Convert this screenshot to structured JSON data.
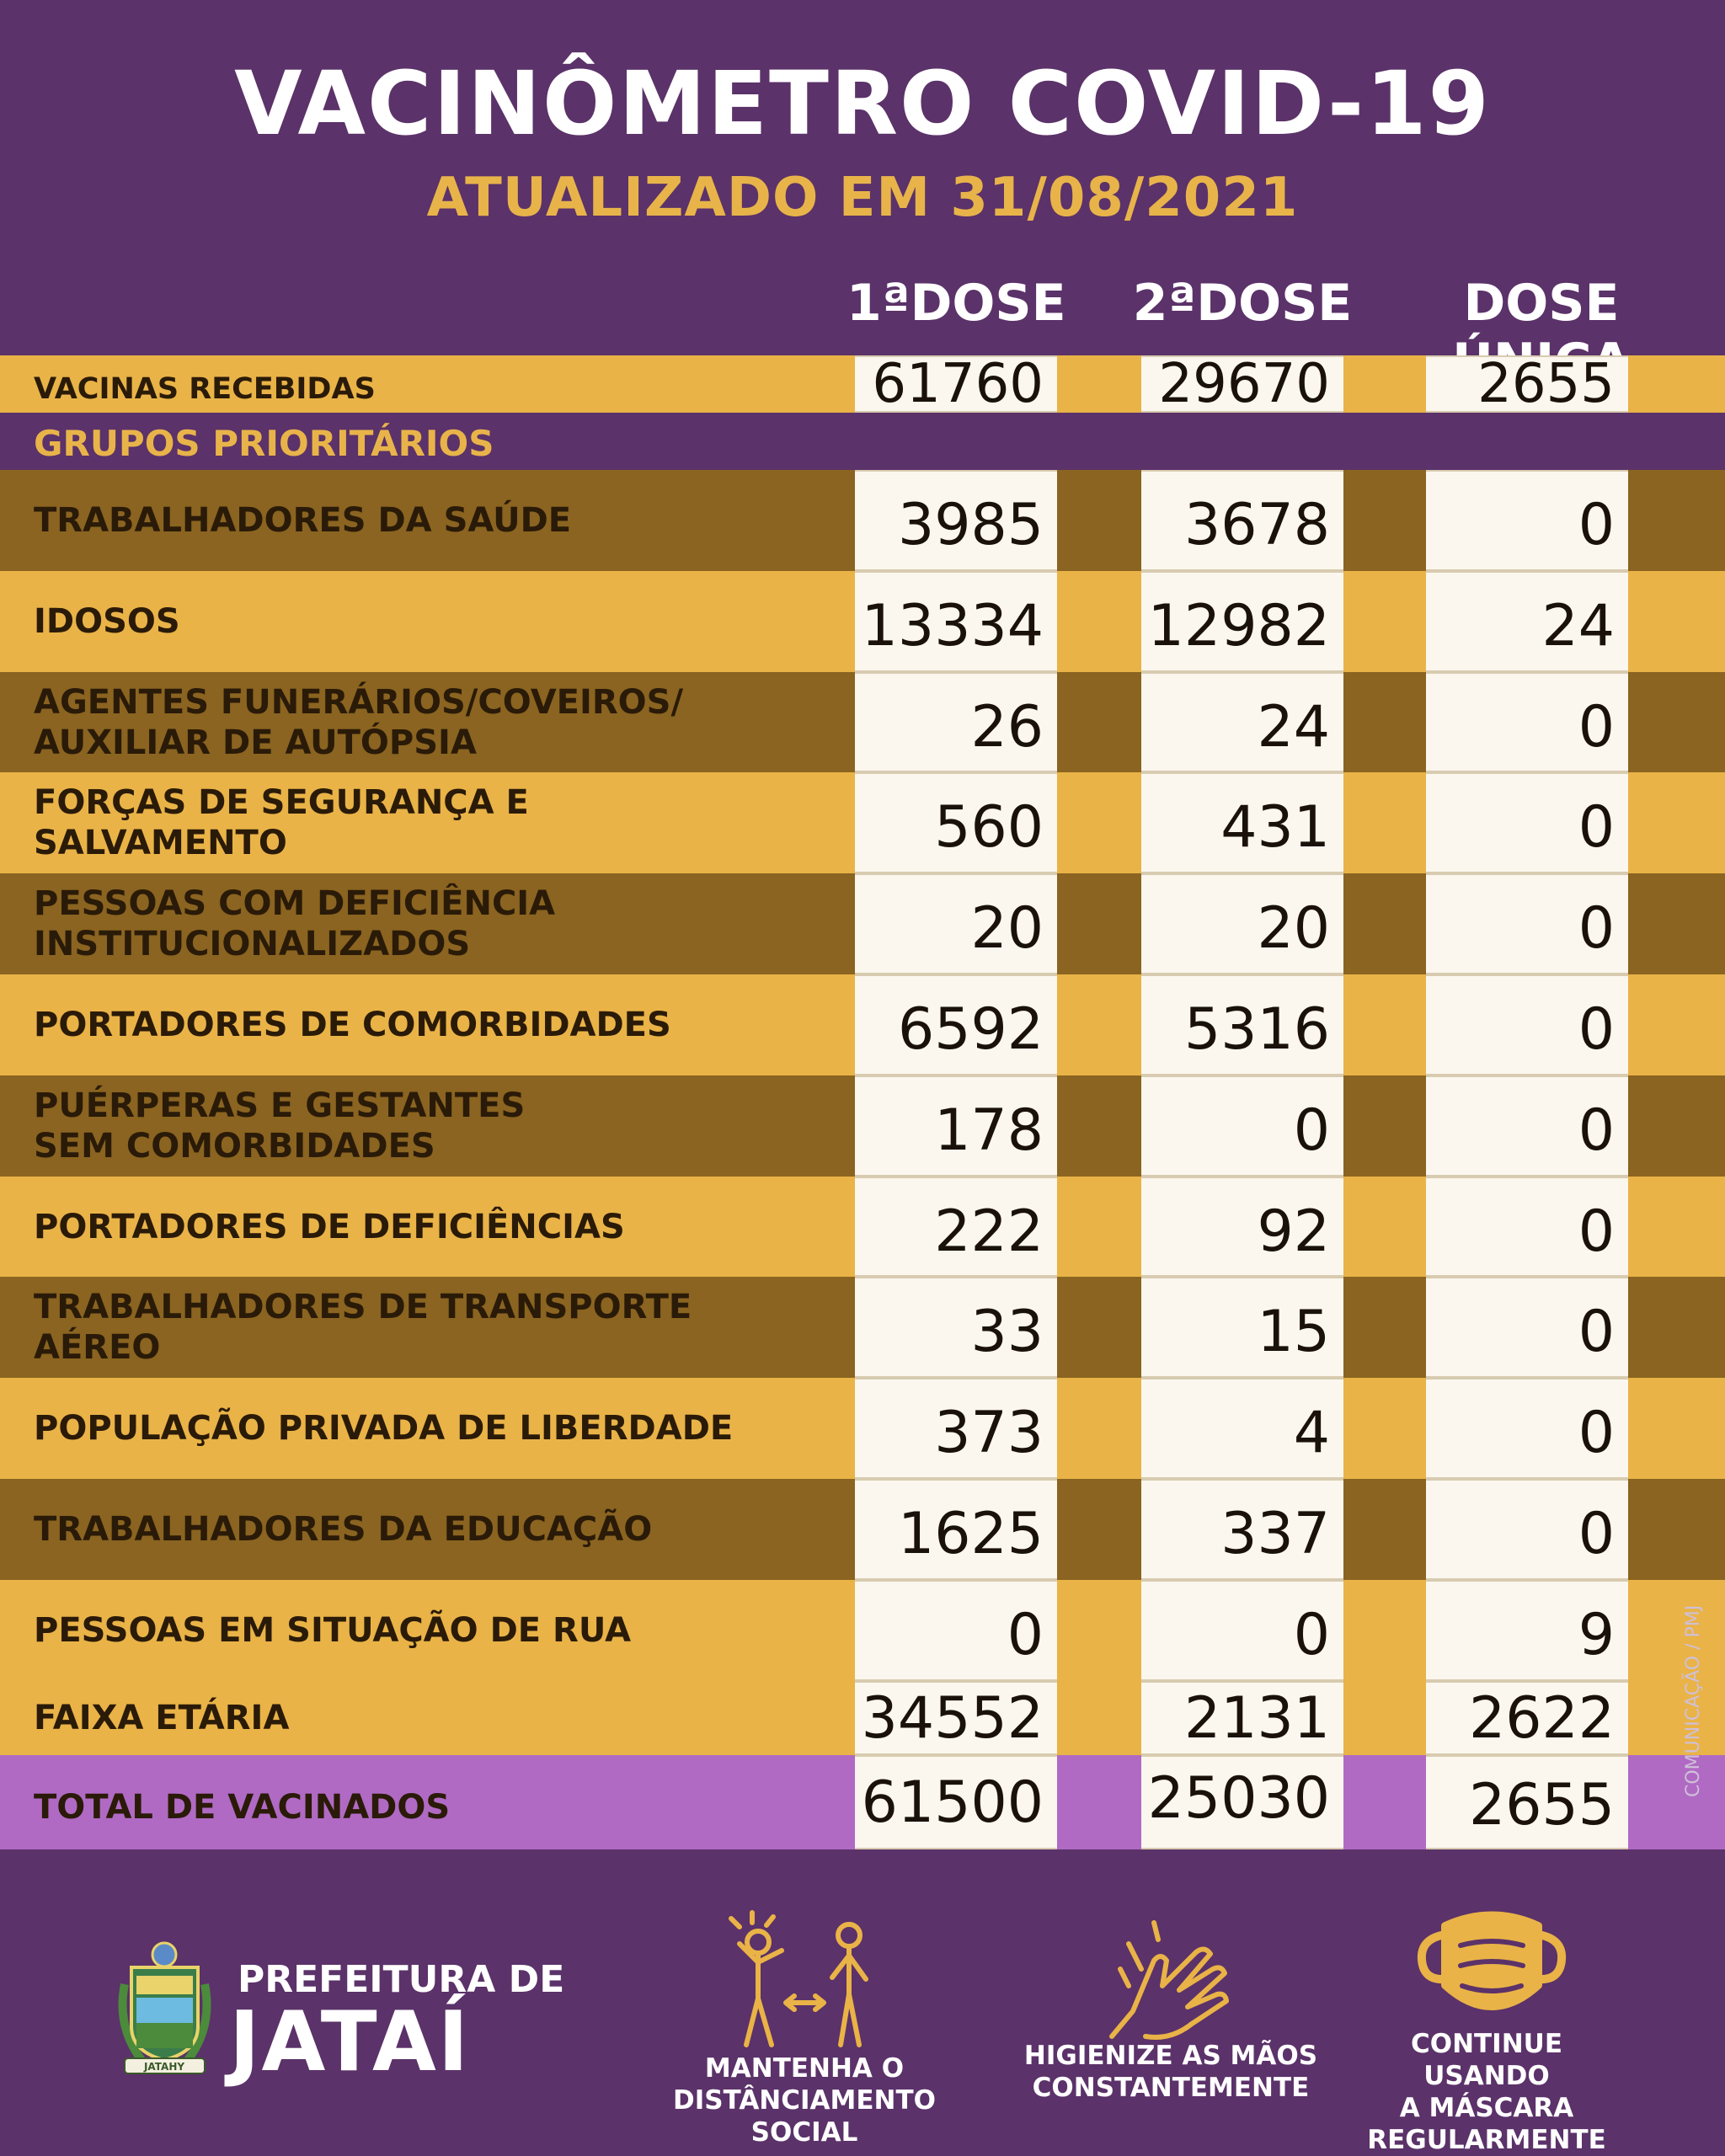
{
  "header": {
    "title": "VACINÔMETRO COVID-19",
    "subtitle": "ATUALIZADO EM 31/08/2021",
    "columns": [
      "1ªDOSE",
      "2ªDOSE",
      "DOSE ÚNICA"
    ]
  },
  "received": {
    "label": "VACINAS RECEBIDAS",
    "values": [
      "61760",
      "29670",
      "2655"
    ]
  },
  "section_label": "GRUPOS PRIORITÁRIOS",
  "rows": [
    {
      "label_lines": [
        "TRABALHADORES DA SAÚDE"
      ],
      "values": [
        "3985",
        "3678",
        "0"
      ]
    },
    {
      "label_lines": [
        "IDOSOS"
      ],
      "values": [
        "13334",
        "12982",
        "24"
      ]
    },
    {
      "label_lines": [
        "AGENTES FUNERÁRIOS/COVEIROS/",
        "AUXILIAR DE AUTÓPSIA"
      ],
      "values": [
        "26",
        "24",
        "0"
      ]
    },
    {
      "label_lines": [
        "FORÇAS DE SEGURANÇA E",
        "SALVAMENTO"
      ],
      "values": [
        "560",
        "431",
        "0"
      ]
    },
    {
      "label_lines": [
        "PESSOAS COM DEFICIÊNCIA",
        "INSTITUCIONALIZADOS"
      ],
      "values": [
        "20",
        "20",
        "0"
      ]
    },
    {
      "label_lines": [
        "PORTADORES DE COMORBIDADES"
      ],
      "values": [
        "6592",
        "5316",
        "0"
      ]
    },
    {
      "label_lines": [
        "PUÉRPERAS E GESTANTES",
        "SEM COMORBIDADES"
      ],
      "values": [
        "178",
        "0",
        "0"
      ]
    },
    {
      "label_lines": [
        "PORTADORES DE DEFICIÊNCIAS"
      ],
      "values": [
        "222",
        "92",
        "0"
      ]
    },
    {
      "label_lines": [
        "TRABALHADORES DE TRANSPORTE",
        "AÉREO"
      ],
      "values": [
        "33",
        "15",
        "0"
      ]
    },
    {
      "label_lines": [
        "POPULAÇÃO PRIVADA DE LIBERDADE"
      ],
      "values": [
        "373",
        "4",
        "0"
      ]
    },
    {
      "label_lines": [
        "TRABALHADORES DA EDUCAÇÃO"
      ],
      "values": [
        "1625",
        "337",
        "0"
      ]
    },
    {
      "label_lines": [
        "PESSOAS EM SITUAÇÃO DE RUA"
      ],
      "values": [
        "0",
        "0",
        "9"
      ]
    }
  ],
  "age_range": {
    "label": "FAIXA ETÁRIA",
    "values": [
      "34552",
      "2131",
      "2622"
    ]
  },
  "total": {
    "label": "TOTAL DE VACINADOS",
    "values": [
      "61500",
      "25030",
      "2655"
    ]
  },
  "credit": "COMUNICAÇÃO / PMJ",
  "footer": {
    "logo_line1": "PREFEITURA DE",
    "logo_line2": "JATAÍ",
    "seal_text": "JATAHY",
    "tips": [
      {
        "icon": "social-distance-icon",
        "lines": [
          "MANTENHA O",
          "DISTÂNCIAMENTO SOCIAL"
        ]
      },
      {
        "icon": "hand-wash-icon",
        "lines": [
          "HIGIENIZE AS MÃOS",
          "CONSTANTEMENTE"
        ]
      },
      {
        "icon": "face-mask-icon",
        "lines": [
          "CONTINUE USANDO",
          "A MÁSCARA",
          "REGULARMENTE"
        ]
      }
    ]
  },
  "colors": {
    "background": "#5b3269",
    "gold": "#e9b347",
    "olive": "#8a6420",
    "lilac": "#b06ac4",
    "cell": "#fbf7ee"
  }
}
